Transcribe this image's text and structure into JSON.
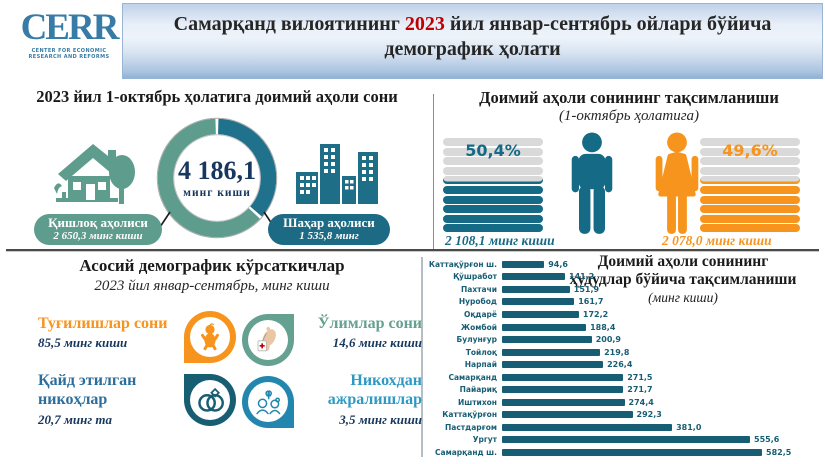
{
  "header": {
    "logo_name": "CERR",
    "logo_sub1": "CENTER FOR ECONOMIC",
    "logo_sub2": "RESEARCH AND REFORMS",
    "title_part1": "Самарқанд вилоятининг ",
    "title_year": "2023",
    "title_part2": " йил январ-сентябрь ойлари бўйича",
    "title_line2": "демографик ҳолати"
  },
  "population": {
    "title": "2023 йил 1-октябрь ҳолатига доимий аҳоли сони",
    "total_value": "4 186,1",
    "total_unit": "минг киши",
    "rural": {
      "label": "Қишлоқ аҳолиси",
      "value": "2 650,3 минг киши",
      "share": 63.3,
      "color": "#5E9C8D"
    },
    "urban": {
      "label": "Шаҳар аҳолиси",
      "value": "1 535,8 минг",
      "share": 36.7,
      "color": "#20718C"
    }
  },
  "gender": {
    "title": "Доимий аҳоли сонининг тақсимланиши",
    "subtitle": "(1-октябрь ҳолатига)",
    "stack": {
      "total_bars": 10,
      "filled_bars": 5
    },
    "male": {
      "percent": "50,4%",
      "value": "2 108,1 минг киши",
      "color": "#156A85"
    },
    "female": {
      "percent": "49,6%",
      "value": "2 078,0 минг киши",
      "color": "#F7941E"
    }
  },
  "indicators": {
    "title": "Асосий демографик кўрсаткичлар",
    "subtitle": "2023 йил январ-сентябрь, минг киши",
    "births": {
      "label": "Туғилишлар сони",
      "value": "85,5 минг киши"
    },
    "deaths": {
      "label": "Ўлимлар сони",
      "value": "14,6 минг киши"
    },
    "marriages": {
      "label_line1": "Қайд этилган",
      "label_line2": "никоҳлар",
      "value": "20,7 минг та"
    },
    "divorces": {
      "label_line1": "Никохдан",
      "label_line2": "ажралишлар",
      "value": "3,5 минг киши"
    }
  },
  "chart_data": {
    "type": "bar",
    "orientation": "horizontal",
    "title_line1": "Доимий аҳоли сонининг",
    "title_line2": "ҳудудлар бўйича тақсимланиши",
    "subtitle": "(минг киши)",
    "categories": [
      "Каттақўрғон ш.",
      "Қўшработ",
      "Пахтачи",
      "Нуробод",
      "Оқдарё",
      "Жомбой",
      "Булунғур",
      "Тойлоқ",
      "Нарпай",
      "Самарқанд",
      "Пайариқ",
      "Иштихон",
      "Каттақўрғон",
      "Пастдарғом",
      "Ургут",
      "Самарқанд ш."
    ],
    "values": [
      94.6,
      141.2,
      151.9,
      161.7,
      172.2,
      188.4,
      200.9,
      219.8,
      226.4,
      271.5,
      271.7,
      274.4,
      292.3,
      381.0,
      555.6,
      582.5
    ],
    "value_labels": [
      "94,6",
      "141,2",
      "151,9",
      "161,7",
      "172,2",
      "188,4",
      "200,9",
      "219,8",
      "226,4",
      "271,5",
      "271,7",
      "274,4",
      "292,3",
      "381,0",
      "555,6",
      "582,5"
    ],
    "xlim": [
      0,
      620
    ],
    "bar_color": "#175E74",
    "grid": false,
    "legend": false
  },
  "colors": {
    "accent_orange": "#F7941E",
    "seafoam": "#5E9C8D",
    "teal_dark": "#1D6A84",
    "navy_text": "#17375E",
    "marriage_blue": "#2B6E9C",
    "divorce_blue": "#2D9AC4",
    "year_red": "#C00000",
    "gray_bar": "#D9D9D9"
  }
}
